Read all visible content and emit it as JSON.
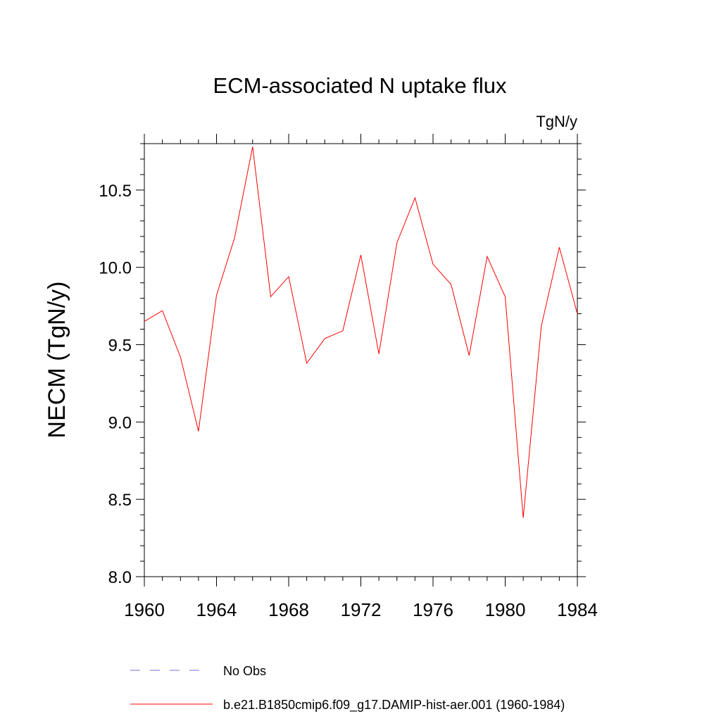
{
  "chart_data": {
    "type": "line",
    "title": "ECM-associated N uptake flux",
    "units_label": "TgN/y",
    "ylabel": "NECM  (TgN/y)",
    "xlabel": "",
    "xlim": [
      1960,
      1984
    ],
    "ylim": [
      8.0,
      10.8
    ],
    "x_ticks": [
      1960,
      1964,
      1968,
      1972,
      1976,
      1980,
      1984
    ],
    "x_tick_labels": [
      "1960",
      "1964",
      "1968",
      "1972",
      "1976",
      "1980",
      "1984"
    ],
    "y_ticks": [
      8.0,
      8.5,
      9.0,
      9.5,
      10.0,
      10.5
    ],
    "y_tick_labels": [
      "8.0",
      "8.5",
      "9.0",
      "9.5",
      "10.0",
      "10.5"
    ],
    "grid": false,
    "legend_position": "bottom",
    "series": [
      {
        "name": "No Obs",
        "color": "#7b6fd0",
        "dashed": true,
        "x": [],
        "values": []
      },
      {
        "name": "b.e21.B1850cmip6.f09_g17.DAMIP-hist-aer.001 (1960-1984)",
        "color": "#ff0000",
        "dashed": false,
        "x": [
          1960,
          1961,
          1962,
          1963,
          1964,
          1965,
          1966,
          1967,
          1968,
          1969,
          1970,
          1971,
          1972,
          1973,
          1974,
          1975,
          1976,
          1977,
          1978,
          1979,
          1980,
          1981,
          1982,
          1983,
          1984
        ],
        "values": [
          9.65,
          9.72,
          9.42,
          8.94,
          9.82,
          10.19,
          10.78,
          9.81,
          9.94,
          9.38,
          9.54,
          9.59,
          10.08,
          9.44,
          10.16,
          10.45,
          10.02,
          9.89,
          9.43,
          10.07,
          9.81,
          8.38,
          9.62,
          10.13,
          9.7
        ]
      }
    ]
  }
}
